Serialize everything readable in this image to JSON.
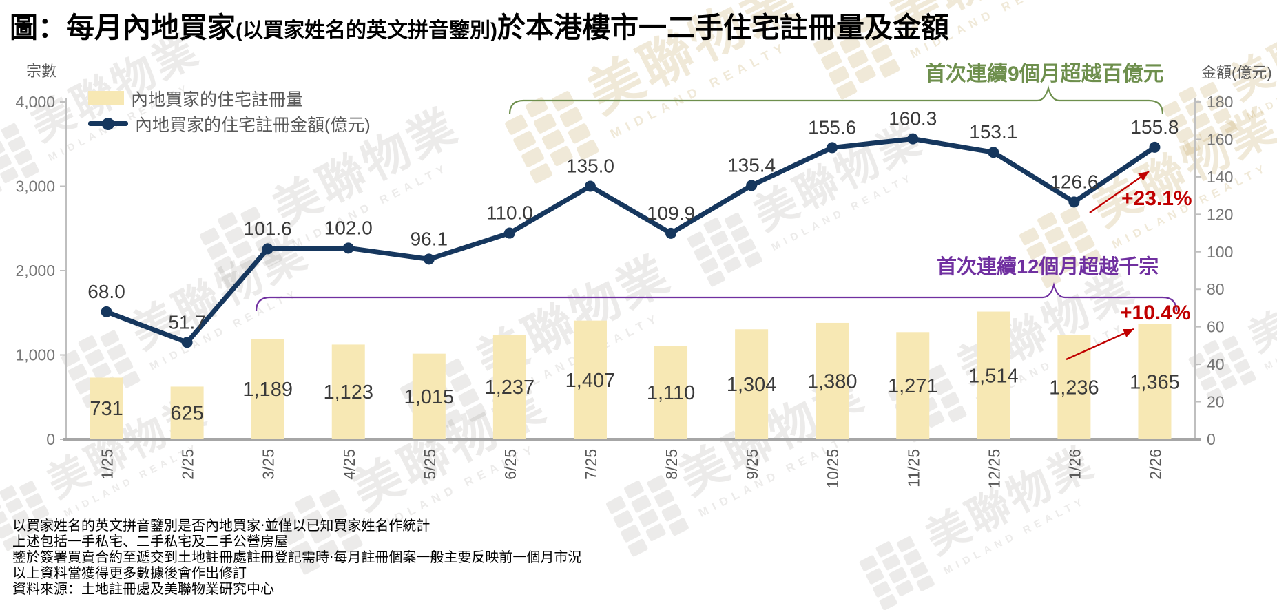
{
  "title": {
    "part1": "圖：每月內地買家",
    "part2": "(以買家姓名的英文拼音鑒別)",
    "part3": "於本港樓市一二手住宅註冊量及金額"
  },
  "legend": [
    {
      "label": "內地買家的住宅註冊量",
      "swatch": "bar",
      "color": "#F7E8B4"
    },
    {
      "label": "內地買家的住宅註冊金額(億元)",
      "swatch": "line",
      "color": "#16375E"
    }
  ],
  "chart_data": {
    "type": "bar+line",
    "categories": [
      "1/25",
      "2/25",
      "3/25",
      "4/25",
      "5/25",
      "6/25",
      "7/25",
      "8/25",
      "9/25",
      "10/25",
      "11/25",
      "12/25",
      "1/26",
      "2/26"
    ],
    "series": [
      {
        "name": "內地買家的住宅註冊量",
        "type": "bar",
        "axis": "left",
        "color": "#F7E8B4",
        "values": [
          731,
          625,
          1189,
          1123,
          1015,
          1237,
          1407,
          1110,
          1304,
          1380,
          1271,
          1514,
          1236,
          1365
        ],
        "labels": [
          "731",
          "625",
          "1,189",
          "1,123",
          "1,015",
          "1,237",
          "1,407",
          "1,110",
          "1,304",
          "1,380",
          "1,271",
          "1,514",
          "1,236",
          "1,365"
        ]
      },
      {
        "name": "內地買家的住宅註冊金額(億元)",
        "type": "line",
        "axis": "right",
        "color": "#16375E",
        "values": [
          68.0,
          51.7,
          101.6,
          102.0,
          96.1,
          110.0,
          135.0,
          109.9,
          135.4,
          155.6,
          160.3,
          153.1,
          126.6,
          155.8
        ],
        "labels": [
          "68.0",
          "51.7",
          "101.6",
          "102.0",
          "96.1",
          "110.0",
          "135.0",
          "109.9",
          "135.4",
          "155.6",
          "160.3",
          "153.1",
          "126.6",
          "155.8"
        ]
      }
    ],
    "left_axis": {
      "title": "宗數",
      "min": 0,
      "max": 4000,
      "ticks": [
        "4,000",
        "3,000",
        "2,000",
        "1,000",
        "0"
      ]
    },
    "right_axis": {
      "title": "金額(億元)",
      "min": 0,
      "max": 180,
      "ticks": [
        "180",
        "160",
        "140",
        "120",
        "100",
        "80",
        "60",
        "40",
        "20",
        "0"
      ]
    },
    "grid": false,
    "legend_position": "top-left"
  },
  "annotations": {
    "green_bracket": {
      "text": "首次連續9個月超越百億元",
      "color": "#6E8F4D",
      "from_category": "6/25",
      "to_category": "2/26"
    },
    "purple_bracket": {
      "text": "首次連續12個月超越千宗",
      "color": "#7030A0",
      "from_category": "3/25",
      "to_category": "2/26"
    },
    "line_change": {
      "text": "+23.1%",
      "color": "#C00000"
    },
    "bar_change": {
      "text": "+10.4%",
      "color": "#C00000"
    }
  },
  "footnotes": [
    "以買家姓名的英文拼音鑒別是否內地買家‧並僅以已知買家姓名作統計",
    "上述包括一手私宅、二手私宅及二手公營房屋",
    "鑒於簽署買賣合約至遞交到土地註冊處註冊登記需時‧每月註冊個案一般主要反映前一個月市況",
    "以上資料當獲得更多數據後會作出修訂",
    "資料來源：土地註冊處及美聯物業研究中心"
  ],
  "brand": {
    "zh": "美聯物業",
    "en": "MIDLAND REALTY"
  },
  "colors": {
    "axis_line": "#BFBFBF",
    "baseline": "#A6A6A6",
    "tick_text": "#767676",
    "category_text": "#595959",
    "value_text": "#3A3A3A"
  }
}
